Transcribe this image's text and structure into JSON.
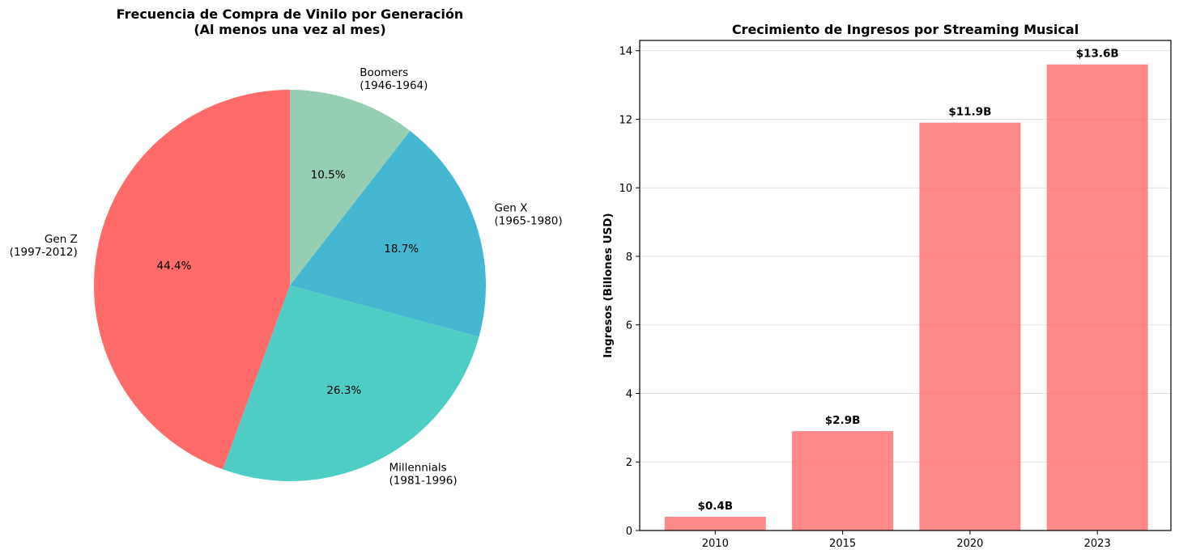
{
  "chart_data": [
    {
      "type": "pie",
      "title": "Frecuencia de Compra de Vinilo por Generación",
      "subtitle": "(Al menos una vez al mes)",
      "slices": [
        {
          "name": "Boomers",
          "range": "(1946-1964)",
          "value": 10.5,
          "label": "10.5%",
          "color": "#96CEB4"
        },
        {
          "name": "Gen X",
          "range": "(1965-1980)",
          "value": 18.7,
          "label": "18.7%",
          "color": "#45B7D1"
        },
        {
          "name": "Millennials",
          "range": "(1981-1996)",
          "value": 26.3,
          "label": "26.3%",
          "color": "#4ECDC4"
        },
        {
          "name": "Gen Z",
          "range": "(1997-2012)",
          "value": 44.4,
          "label": "44.4%",
          "color": "#FF6B6B"
        }
      ]
    },
    {
      "type": "bar",
      "title": "Crecimiento de Ingresos por Streaming Musical",
      "xlabel": "",
      "ylabel": "Ingresos (Billones USD)",
      "categories": [
        "2010",
        "2015",
        "2020",
        "2023"
      ],
      "values": [
        0.4,
        2.9,
        11.9,
        13.6
      ],
      "value_labels": [
        "$0.4B",
        "$2.9B",
        "$11.9B",
        "$13.6B"
      ],
      "ylim": [
        0,
        14.3
      ],
      "yticks": [
        0,
        2,
        4,
        6,
        8,
        10,
        12,
        14
      ],
      "grid": "y",
      "color": "#FF6B6B"
    }
  ]
}
